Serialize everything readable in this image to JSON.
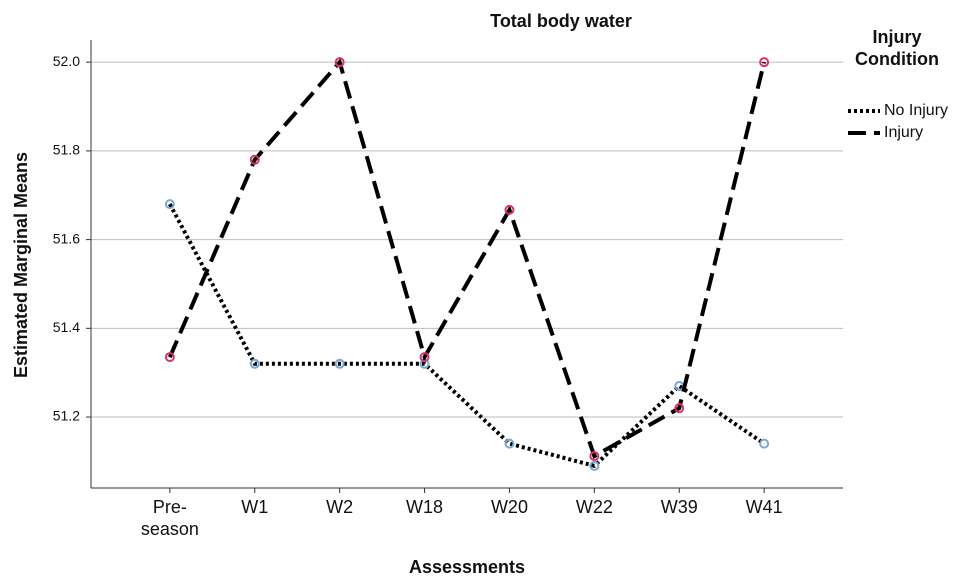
{
  "chart_data": {
    "type": "line",
    "title": "Total body water",
    "x_label": "Assessments",
    "y_label": "Estimated Marginal Means",
    "categories": [
      "Pre-\nseason",
      "W1",
      "W2",
      "W18",
      "W20",
      "W22",
      "W39",
      "W41"
    ],
    "series": [
      {
        "name": "No Injury",
        "color": "#000000",
        "marker_color": "#7aa6d6",
        "dash": "dotted",
        "values": [
          51.68,
          51.32,
          51.32,
          51.32,
          51.14,
          51.09,
          51.27,
          51.14
        ]
      },
      {
        "name": "Injury",
        "color": "#000000",
        "marker_color": "#d6336c",
        "dash": "dashed",
        "values": [
          51.335,
          51.78,
          52.0,
          51.335,
          51.667,
          51.112,
          51.22,
          52.0
        ]
      }
    ],
    "legend_title": [
      "Injury",
      "Condition"
    ],
    "ylim": [
      51.04,
      52.05
    ],
    "yticks": [
      51.2,
      51.4,
      51.6,
      51.8,
      {
        "value": 52,
        "label": "52.0"
      }
    ],
    "grid": true,
    "legend": "right"
  }
}
